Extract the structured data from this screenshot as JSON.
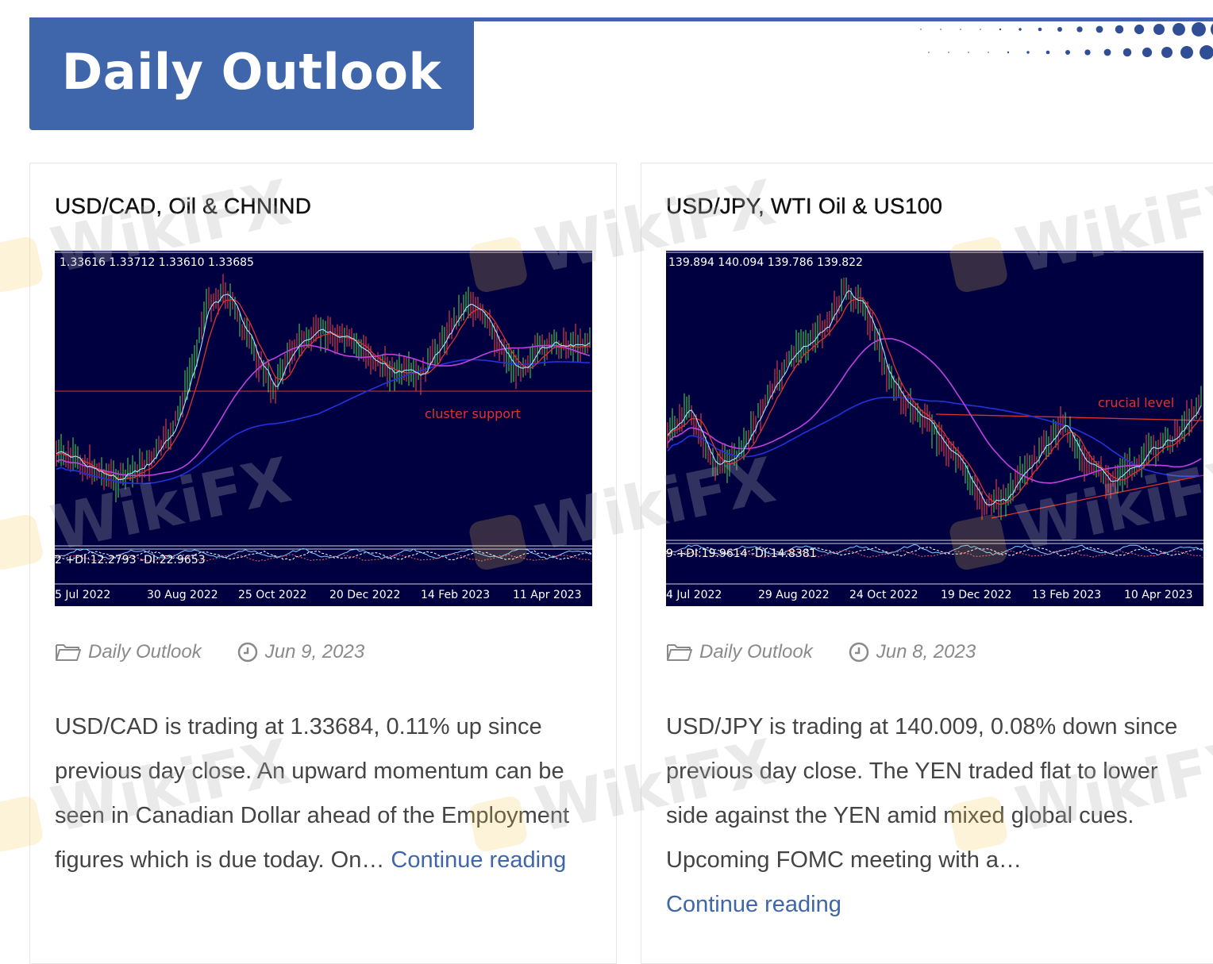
{
  "header": {
    "title": "Daily Outlook",
    "accent": "#3f66ab"
  },
  "watermark": "WikiFX",
  "posts": [
    {
      "title": "USD/CAD, Oil & CHNIND",
      "chart": {
        "ohlc": "1.33616 1.33712 1.33610 1.33685",
        "annotation": "cluster support",
        "indicator": "2 +DI:12.2793 -DI:22.9653",
        "dates": [
          "5 Jul 2022",
          "30 Aug 2022",
          "25 Oct 2022",
          "20 Dec 2022",
          "14 Feb 2023",
          "11 Apr 2023"
        ]
      },
      "category": "Daily Outlook",
      "date": "Jun 9, 2023",
      "excerpt": "USD/CAD is trading at 1.33684, 0.11% up since previous day close. An upward momentum can be seen in Canadian Dollar ahead of the Employment figures which is due today. On… ",
      "more": "Continue reading"
    },
    {
      "title": "USD/JPY, WTI Oil & US100",
      "chart": {
        "ohlc": "139.894 140.094 139.786 139.822",
        "annotation": "crucial level",
        "indicator": "9 +DI:19.9614 -DI:14.8381",
        "dates": [
          "4 Jul 2022",
          "29 Aug 2022",
          "24 Oct 2022",
          "19 Dec 2022",
          "13 Feb 2023",
          "10 Apr 2023"
        ]
      },
      "category": "Daily Outlook",
      "date": "Jun 8, 2023",
      "excerpt": "USD/JPY is trading at 140.009, 0.08% down since previous day close. The YEN traded flat to lower side against the YEN amid mixed global cues. Upcoming FOMC meeting with a… ",
      "more": "Continue reading"
    }
  ]
}
